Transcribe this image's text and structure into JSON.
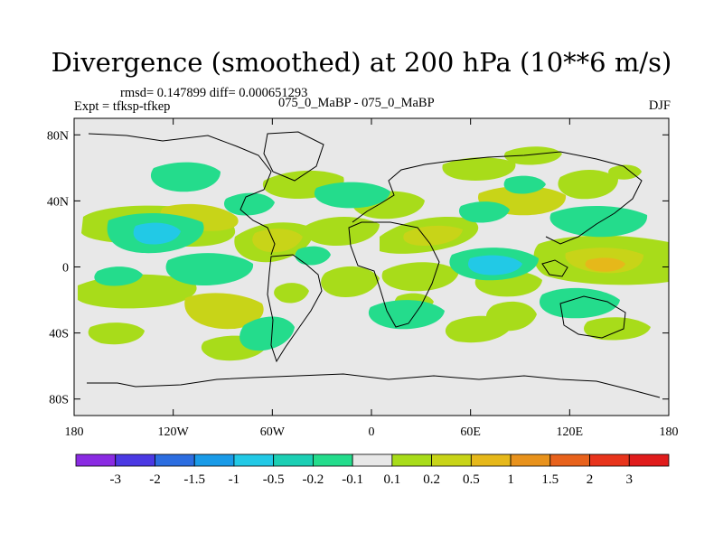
{
  "title": "Divergence (smoothed) at 200 hPa (10**6 m/s)",
  "stats": "rmsd= 0.147899 diff= 0.000651293",
  "experiment": "Expt = tfksp-tfkep",
  "case_pair": "075_0_MaBP - 075_0_MaBP",
  "season": "DJF",
  "map": {
    "lon_ticks": [
      "180",
      "120W",
      "60W",
      "0",
      "60E",
      "120E",
      "180"
    ],
    "lat_ticks": [
      "80N",
      "40N",
      "0",
      "40S",
      "80S"
    ],
    "lon_range": [
      -180,
      180
    ],
    "lat_range": [
      -90,
      90
    ]
  },
  "colorbar": {
    "labels": [
      "-3",
      "-2",
      "-1.5",
      "-1",
      "-0.5",
      "-0.2",
      "-0.1",
      "0.1",
      "0.2",
      "0.5",
      "1",
      "1.5",
      "2",
      "3"
    ],
    "colors": [
      "#8a2be2",
      "#4b39e3",
      "#2c6de0",
      "#1a9be8",
      "#22c9e6",
      "#1ccfb4",
      "#24dc8c",
      "#e8e8e8",
      "#a8dc1a",
      "#c8d418",
      "#e6b81a",
      "#e8921c",
      "#e8621c",
      "#e8341c",
      "#e01c1c"
    ]
  },
  "colors": {
    "ocean_bg": "#e8e8e8",
    "pos_light": "#a8dc1a",
    "pos_mid": "#c8d418",
    "pos_high": "#e6b81a",
    "neg_light": "#24dc8c",
    "neg_mid": "#22c9e6"
  }
}
